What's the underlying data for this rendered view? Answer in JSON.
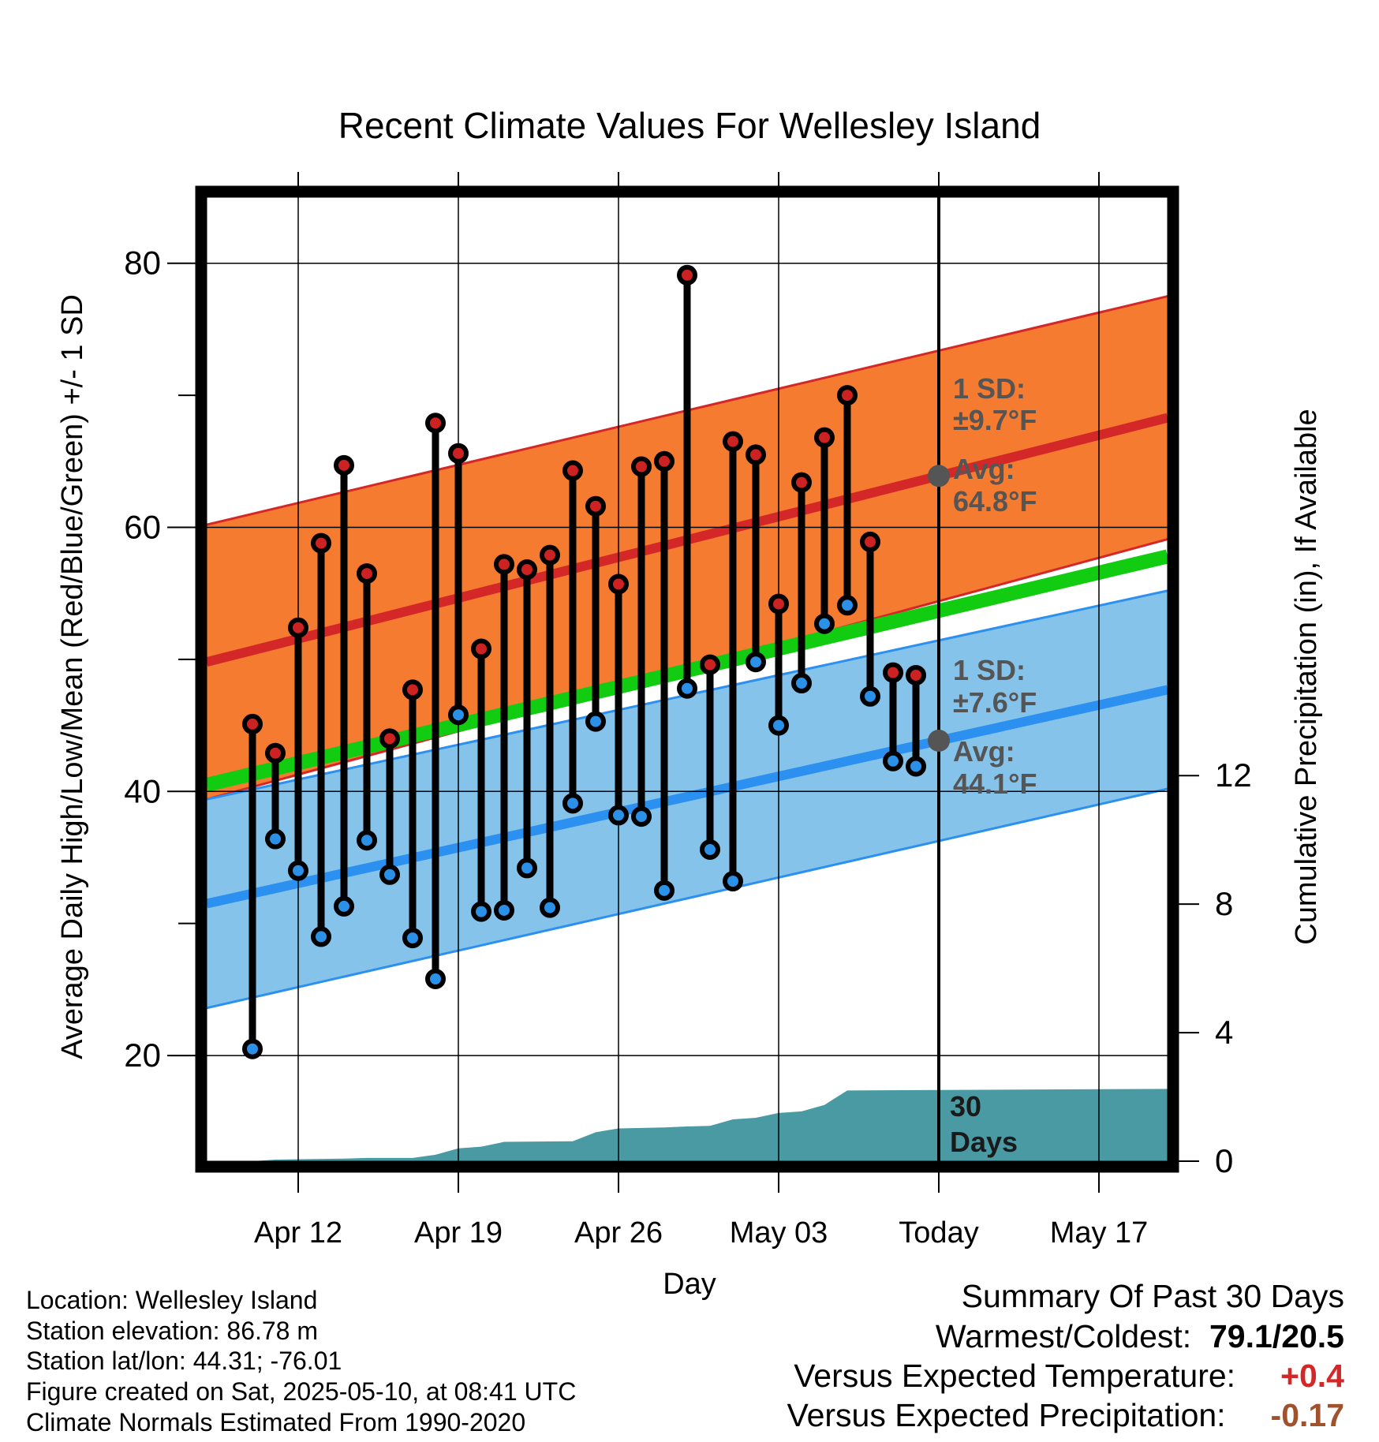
{
  "chart_data": {
    "type": "line",
    "title": "Recent Climate Values For Wellesley Island",
    "xlabel": "Day",
    "ylabel": "Average Daily High/Low/Mean (Red/Blue/Green) +/- 1 SD",
    "y2label": "Cumulative Precipitation (in), If Available",
    "x_range": [
      "2025-04-08",
      "2025-05-20"
    ],
    "ylim": [
      12,
      85
    ],
    "y2lim": [
      0,
      30
    ],
    "y_ticks": [
      "20",
      "40",
      "60",
      "80"
    ],
    "y2_ticks": [
      "0",
      "4",
      "8",
      "12"
    ],
    "x_ticks": [
      {
        "date": "2025-04-12",
        "label": "Apr 12"
      },
      {
        "date": "2025-04-19",
        "label": "Apr 19"
      },
      {
        "date": "2025-04-26",
        "label": "Apr 26"
      },
      {
        "date": "2025-05-03",
        "label": "May 03"
      },
      {
        "date": "2025-05-10",
        "label": "Today"
      },
      {
        "date": "2025-05-17",
        "label": "May 17"
      }
    ],
    "today": "2025-05-10",
    "dates": [
      "2025-04-10",
      "2025-04-11",
      "2025-04-12",
      "2025-04-13",
      "2025-04-14",
      "2025-04-15",
      "2025-04-16",
      "2025-04-17",
      "2025-04-18",
      "2025-04-19",
      "2025-04-20",
      "2025-04-21",
      "2025-04-22",
      "2025-04-23",
      "2025-04-24",
      "2025-04-25",
      "2025-04-26",
      "2025-04-27",
      "2025-04-28",
      "2025-04-29",
      "2025-04-30",
      "2025-05-01",
      "2025-05-02",
      "2025-05-03",
      "2025-05-04",
      "2025-05-05",
      "2025-05-06",
      "2025-05-07",
      "2025-05-08",
      "2025-05-09"
    ],
    "series": [
      {
        "name": "High",
        "color": "#cc2222",
        "values": [
          45.1,
          42.9,
          52.4,
          58.8,
          64.7,
          56.5,
          44.0,
          47.7,
          67.9,
          65.6,
          50.8,
          57.2,
          56.8,
          57.9,
          64.3,
          61.6,
          55.7,
          64.6,
          65.0,
          79.1,
          49.6,
          66.5,
          65.5,
          54.2,
          63.4,
          66.8,
          70.0,
          58.9,
          49.0,
          48.8
        ]
      },
      {
        "name": "Low",
        "color": "#2b90e8",
        "values": [
          20.5,
          36.4,
          34.0,
          29.0,
          31.3,
          36.3,
          33.7,
          28.9,
          25.8,
          45.8,
          30.9,
          31.0,
          34.2,
          31.2,
          39.1,
          45.3,
          38.2,
          38.1,
          32.5,
          47.8,
          35.6,
          33.2,
          49.8,
          45.0,
          48.2,
          52.7,
          54.1,
          47.2,
          42.3,
          41.9
        ]
      }
    ],
    "normals": {
      "x_range": [
        "2025-04-08",
        "2025-05-20"
      ],
      "high_avg": [
        49.8,
        68.3
      ],
      "high_sd": [
        10.4,
        9.2
      ],
      "low_avg": [
        31.5,
        47.7
      ],
      "low_sd": [
        7.9,
        7.5
      ],
      "mean_avg": [
        40.5,
        57.8
      ]
    },
    "precip_cumulative": {
      "dates": [
        "2025-04-08",
        "2025-04-10",
        "2025-04-11",
        "2025-04-14",
        "2025-04-15",
        "2025-04-17",
        "2025-04-18",
        "2025-04-19",
        "2025-04-20",
        "2025-04-21",
        "2025-04-24",
        "2025-04-25",
        "2025-04-26",
        "2025-04-28",
        "2025-04-29",
        "2025-04-30",
        "2025-05-01",
        "2025-05-02",
        "2025-05-03",
        "2025-05-04",
        "2025-05-05",
        "2025-05-06",
        "2025-05-20"
      ],
      "values": [
        0,
        0,
        0.05,
        0.08,
        0.1,
        0.1,
        0.2,
        0.4,
        0.45,
        0.6,
        0.62,
        0.9,
        1.02,
        1.05,
        1.08,
        1.1,
        1.3,
        1.35,
        1.5,
        1.55,
        1.75,
        2.2,
        2.25
      ],
      "color": "#4a9aa4"
    },
    "annotations": {
      "high_sd": "1 SD:",
      "high_sd_value": "±9.7°F",
      "high_avg": "Avg:",
      "high_avg_value": "64.8°F",
      "low_sd": "1 SD:",
      "low_sd_value": "±7.6°F",
      "low_avg": "Avg:",
      "low_avg_value": "44.1°F",
      "days_count": "30",
      "days_label": "Days"
    },
    "colors": {
      "high_band": "#f47b30",
      "high_line": "#d42828",
      "low_band": "#86c3ea",
      "low_line": "#2b90f0",
      "mean_line": "#11cc11",
      "annotation": "#555555"
    },
    "grid": true
  },
  "info": {
    "location": "Location: Wellesley Island",
    "elevation": "Station elevation: 86.78 m",
    "latlon": "Station lat/lon: 44.31; -76.01",
    "created": "Figure created on Sat, 2025-05-10, at 08:41 UTC",
    "normals": "Climate Normals Estimated From 1990-2020"
  },
  "summary": {
    "title": "Summary Of Past 30 Days",
    "warmest_coldest_label": "Warmest/Coldest:",
    "warmest_coldest_value": "79.1/20.5",
    "temp_label": "Versus Expected Temperature:",
    "temp_value": "+0.4",
    "temp_color": "#d42828",
    "precip_label": "Versus Expected Precipitation:",
    "precip_value": "-0.17",
    "precip_color": "#a0522d"
  }
}
